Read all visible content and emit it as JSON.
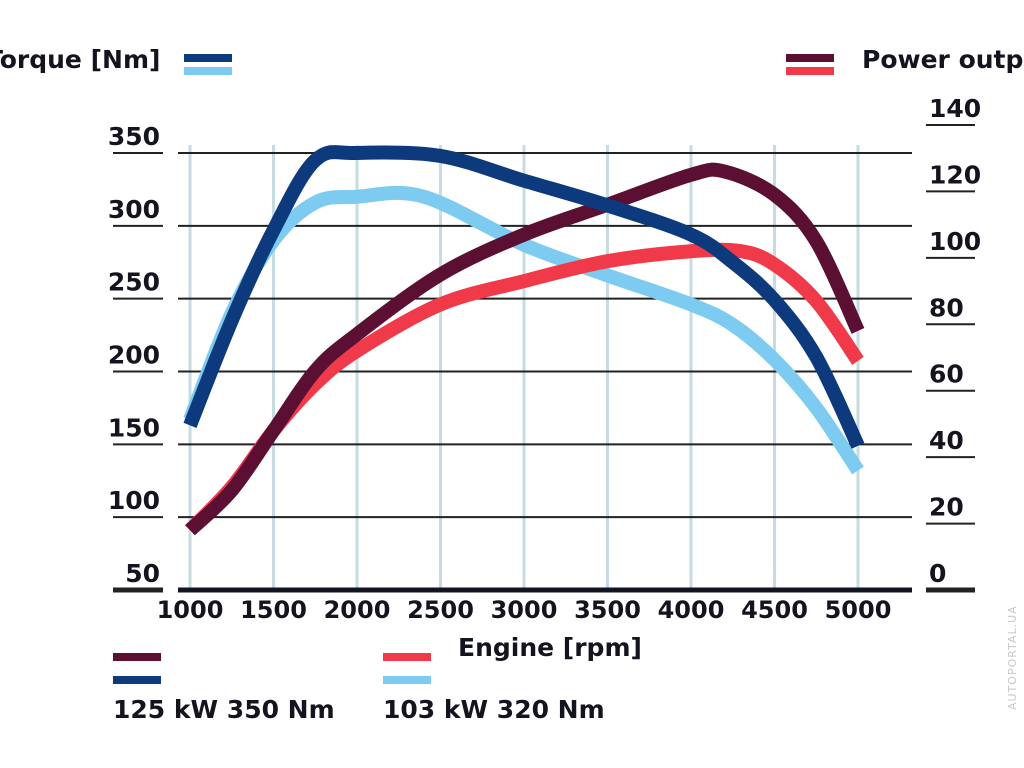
{
  "chart_data": {
    "type": "line",
    "left_axis": {
      "title": "Torque [Nm]",
      "ticks": [
        50,
        100,
        150,
        200,
        250,
        300,
        350
      ],
      "range": [
        50,
        350
      ]
    },
    "right_axis": {
      "title": "Power output",
      "ticks": [
        0,
        20,
        40,
        60,
        80,
        100,
        120,
        140
      ],
      "range": [
        0,
        140
      ]
    },
    "x_axis": {
      "title": "Engine [rpm]",
      "ticks": [
        1000,
        1500,
        2000,
        2500,
        3000,
        3500,
        4000,
        4500,
        5000
      ],
      "range": [
        1000,
        5000
      ]
    },
    "grid": true,
    "series": [
      {
        "group": "125 kW 350 Nm",
        "quantity": "torque",
        "axis": "left",
        "color": "#0d3a7d",
        "x": [
          1000,
          1250,
          1500,
          1750,
          2000,
          2500,
          3000,
          3500,
          4000,
          4250,
          4500,
          4750,
          5000
        ],
        "y": [
          163,
          235,
          297,
          345,
          350,
          348,
          331,
          314,
          294,
          275,
          249,
          210,
          149
        ]
      },
      {
        "group": "103 kW 320 Nm",
        "quantity": "torque",
        "axis": "left",
        "color": "#7dcbf0",
        "x": [
          1000,
          1250,
          1500,
          1750,
          2000,
          2400,
          3000,
          3500,
          4000,
          4250,
          4500,
          4750,
          5000
        ],
        "y": [
          167,
          240,
          290,
          316,
          320,
          320,
          287,
          266,
          246,
          232,
          208,
          175,
          132
        ]
      },
      {
        "group": "125 kW 350 Nm",
        "quantity": "power",
        "axis": "right",
        "color": "#5a0f33",
        "x": [
          1000,
          1250,
          1500,
          1750,
          2000,
          2500,
          3000,
          3500,
          4000,
          4200,
          4500,
          4750,
          5000
        ],
        "y": [
          18,
          30,
          48,
          66,
          77,
          95,
          107,
          116,
          125,
          126,
          119,
          105,
          78
        ]
      },
      {
        "group": "103 kW 320 Nm",
        "quantity": "power",
        "axis": "right",
        "color": "#f03a4a",
        "x": [
          1000,
          1250,
          1500,
          1750,
          2000,
          2500,
          3000,
          3500,
          4000,
          4300,
          4500,
          4750,
          5000
        ],
        "y": [
          18,
          31,
          48,
          62,
          72,
          86,
          93,
          99,
          102,
          102,
          98,
          87,
          69
        ]
      }
    ],
    "legend": {
      "torque_colors": [
        "#0d3a7d",
        "#7dcbf0"
      ],
      "power_colors": [
        "#5a0f33",
        "#f03a4a"
      ],
      "entries": [
        {
          "label": "125 kW 350 Nm",
          "colors": [
            "#5a0f33",
            "#0d3a7d"
          ]
        },
        {
          "label": "103 kW 320 Nm",
          "colors": [
            "#f03a4a",
            "#7dcbf0"
          ]
        }
      ]
    }
  },
  "watermark": "AUTOPORTAL.UA"
}
